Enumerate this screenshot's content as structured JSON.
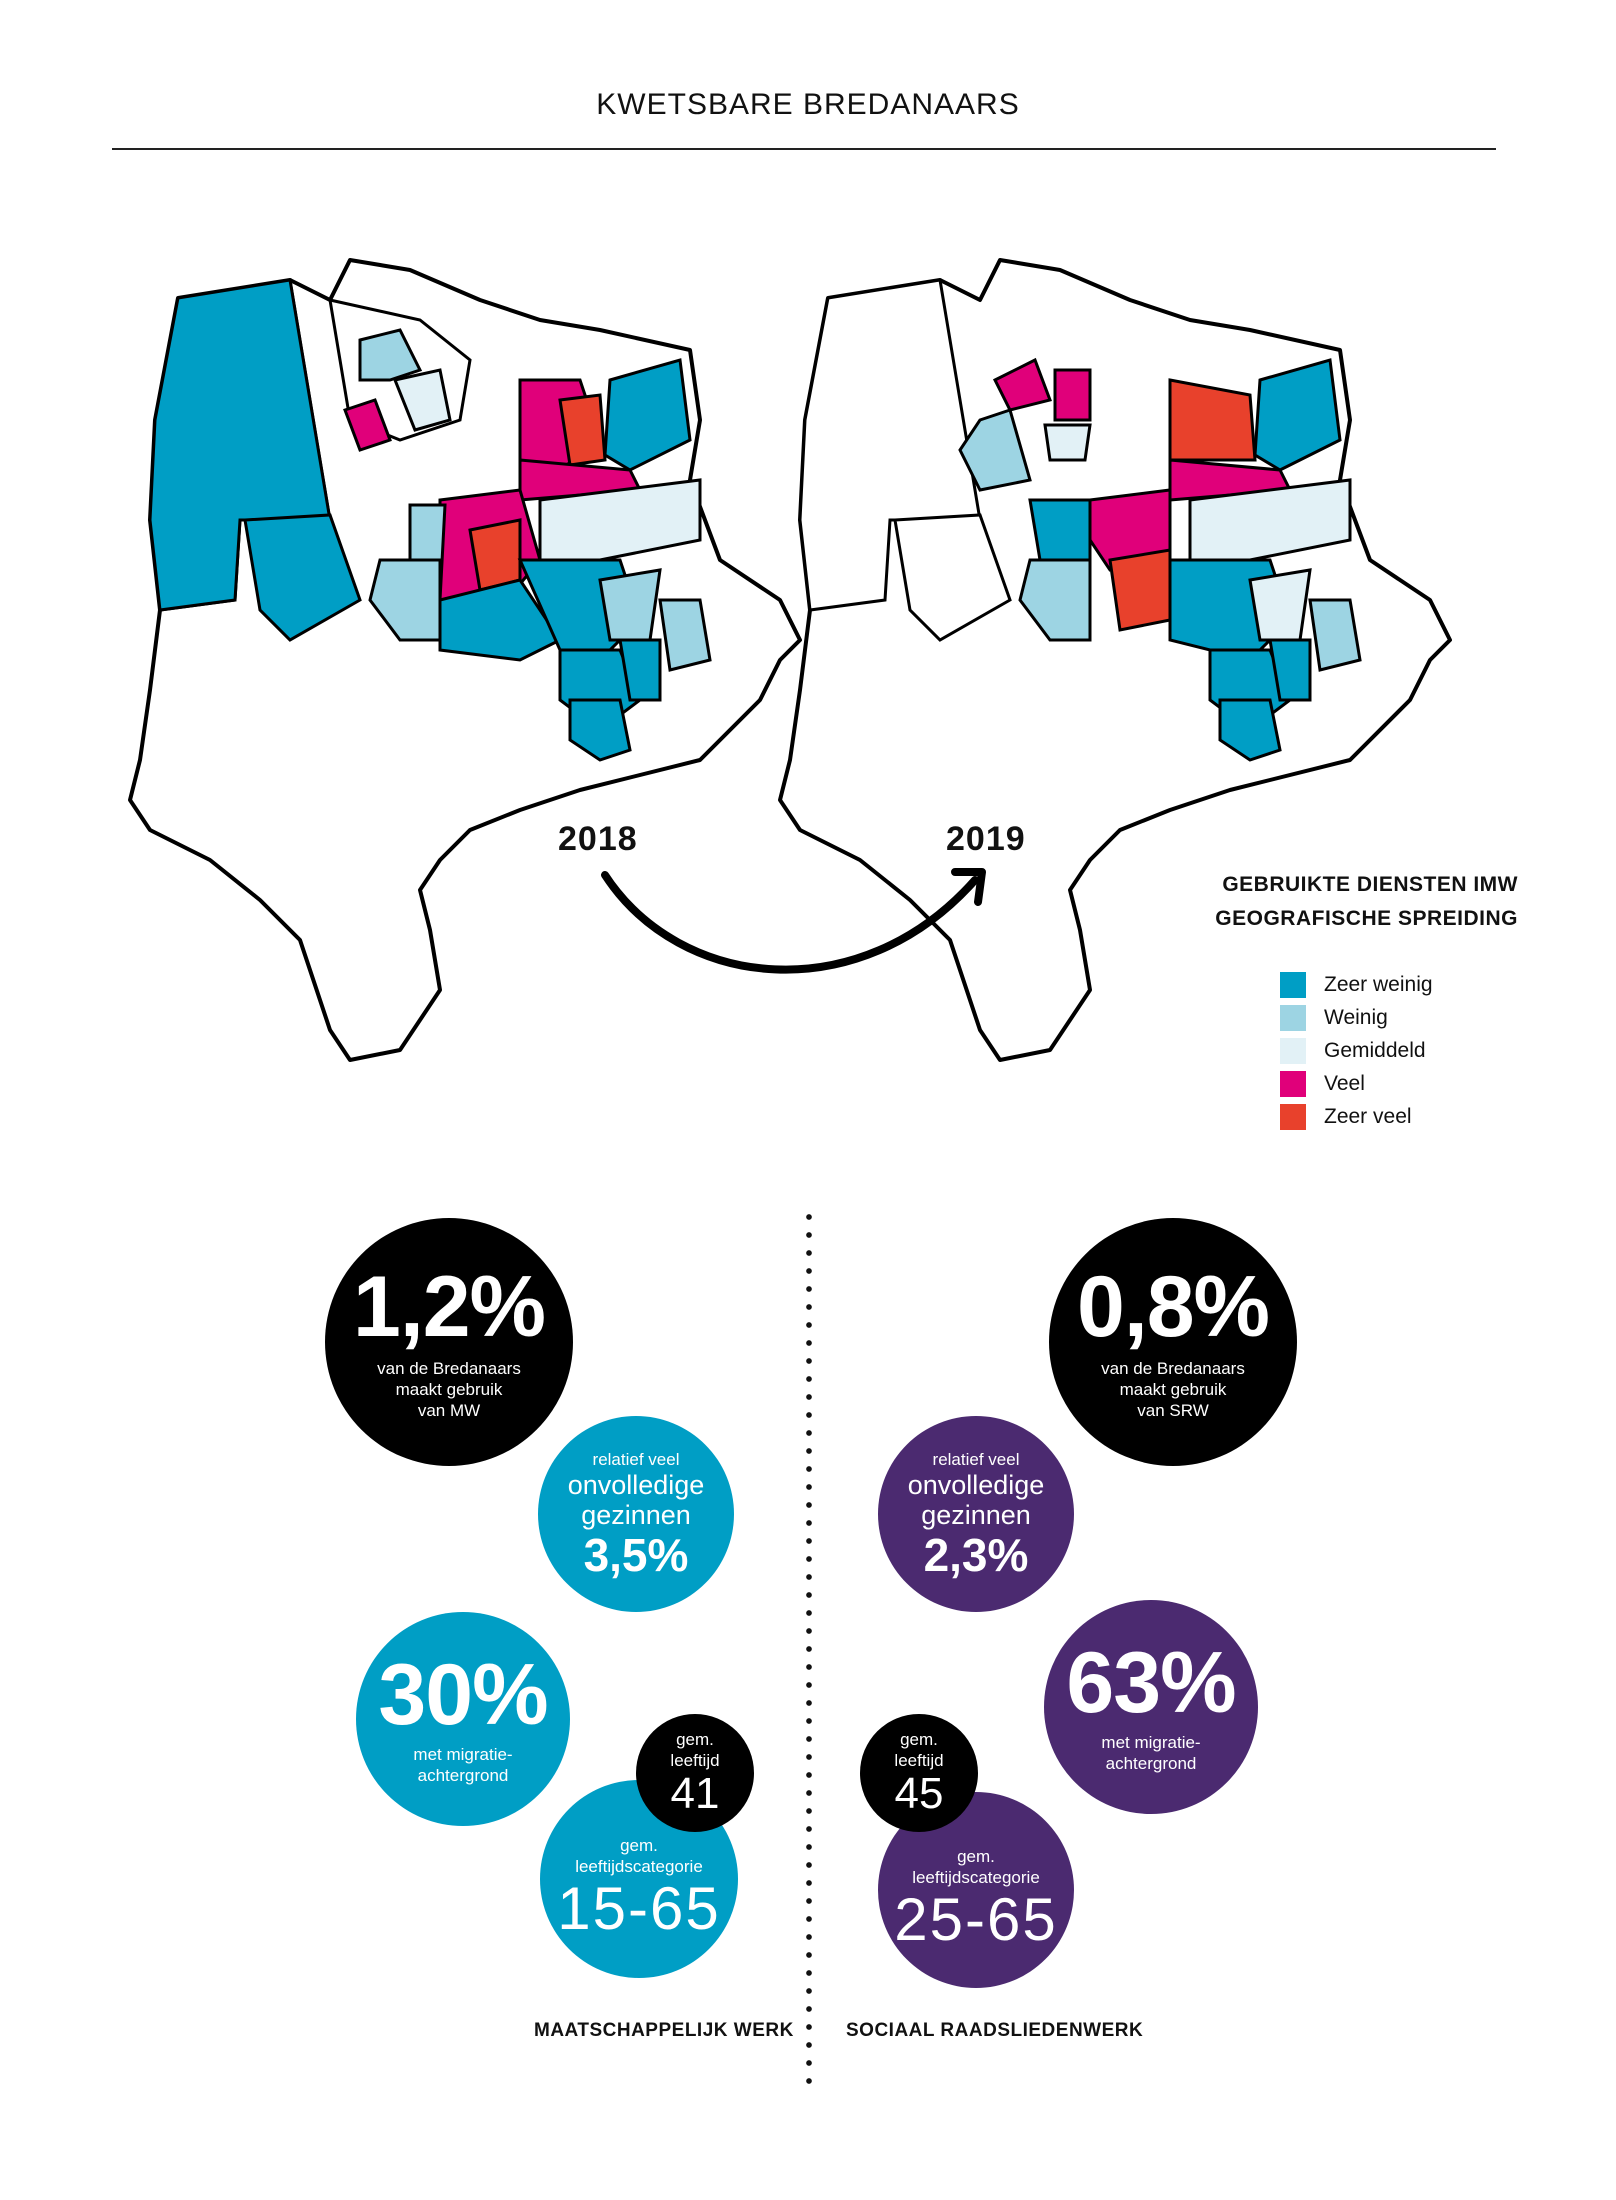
{
  "header": {
    "title": "KWETSBARE BREDANAARS"
  },
  "maps": {
    "year_left": "2018",
    "year_right": "2019"
  },
  "legend": {
    "title_line1": "GEBRUIKTE DIENSTEN IMW",
    "title_line2": "GEOGRAFISCHE SPREIDING",
    "items": [
      {
        "label": "Zeer weinig",
        "color": "#009ec5"
      },
      {
        "label": "Weinig",
        "color": "#9dd4e3"
      },
      {
        "label": "Gemiddeld",
        "color": "#e2f1f6"
      },
      {
        "label": "Veel",
        "color": "#e0007a"
      },
      {
        "label": "Zeer veel",
        "color": "#e8412c"
      }
    ]
  },
  "mw": {
    "usage_value": "1,2%",
    "usage_text_1": "van de Bredanaars",
    "usage_text_2": "maakt gebruik",
    "usage_text_3": "van MW",
    "families_text_1": "relatief veel",
    "families_text_2": "onvolledige",
    "families_text_3": "gezinnen",
    "families_value": "3,5%",
    "migration_value": "30%",
    "migration_text_1": "met migratie-",
    "migration_text_2": "achtergrond",
    "age_label_1": "gem.",
    "age_label_2": "leeftijd",
    "age_value": "41",
    "agecat_label_1": "gem.",
    "agecat_label_2": "leeftijdscategorie",
    "agecat_value": "15-65",
    "section_label": "MAATSCHAPPELIJK WERK"
  },
  "srw": {
    "usage_value": "0,8%",
    "usage_text_1": "van de Bredanaars",
    "usage_text_2": "maakt gebruik",
    "usage_text_3": "van SRW",
    "families_text_1": "relatief veel",
    "families_text_2": "onvolledige",
    "families_text_3": "gezinnen",
    "families_value": "2,3%",
    "migration_value": "63%",
    "migration_text_1": "met migratie-",
    "migration_text_2": "achtergrond",
    "age_label_1": "gem.",
    "age_label_2": "leeftijd",
    "age_value": "45",
    "agecat_label_1": "gem.",
    "agecat_label_2": "leeftijdscategorie",
    "agecat_value": "25-65",
    "section_label": "SOCIAAL RAADSLIEDENWERK"
  }
}
